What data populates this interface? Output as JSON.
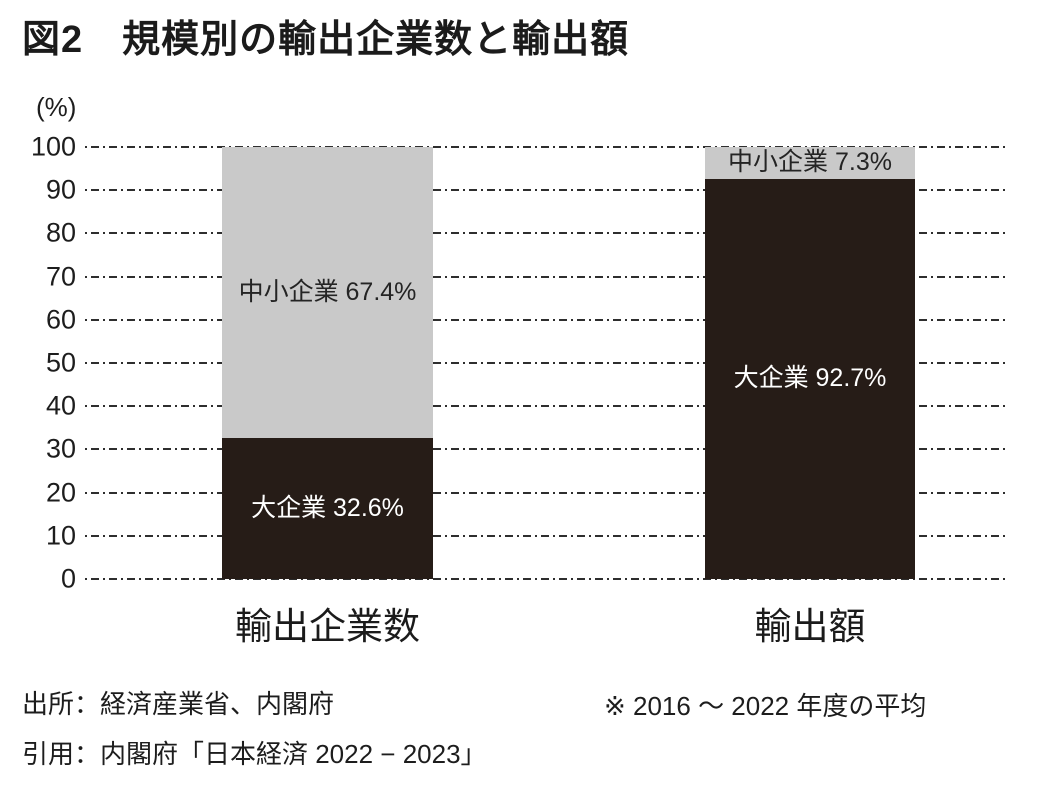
{
  "title": "図2　規模別の輸出企業数と輸出額",
  "chart_data": {
    "type": "bar",
    "stacked": true,
    "title": "図2　規模別の輸出企業数と輸出額",
    "unit_label": "(%)",
    "ylim": [
      0,
      100
    ],
    "yticks": [
      100,
      90,
      80,
      70,
      60,
      50,
      40,
      30,
      20,
      10,
      0
    ],
    "grid": "horizontal dash-dot",
    "legend": "none (labels inside segments)",
    "categories": [
      "輸出企業数",
      "輸出額"
    ],
    "series": [
      {
        "name": "大企業",
        "color": "#261c17",
        "text_color": "#ffffff",
        "values": [
          32.6,
          92.7
        ],
        "labels": [
          "大企業 32.6%",
          "大企業 92.7%"
        ]
      },
      {
        "name": "中小企業",
        "color": "#c9c9c9",
        "text_color": "#242424",
        "values": [
          67.4,
          7.3
        ],
        "labels": [
          "中小企業 67.4%",
          "中小企業 7.3%"
        ]
      }
    ]
  },
  "footer": {
    "source": "出所：経済産業省、内閣府",
    "citation": "引用：内閣府「日本経済 2022 − 2023」",
    "note": "※ 2016 ～ 2022 年度の平均"
  },
  "colors": {
    "large_company_fill": "#261c17",
    "sme_fill": "#c9c9c9",
    "gridline": "#2e2e2e",
    "text": "#1d1d1d",
    "background": "#ffffff"
  }
}
